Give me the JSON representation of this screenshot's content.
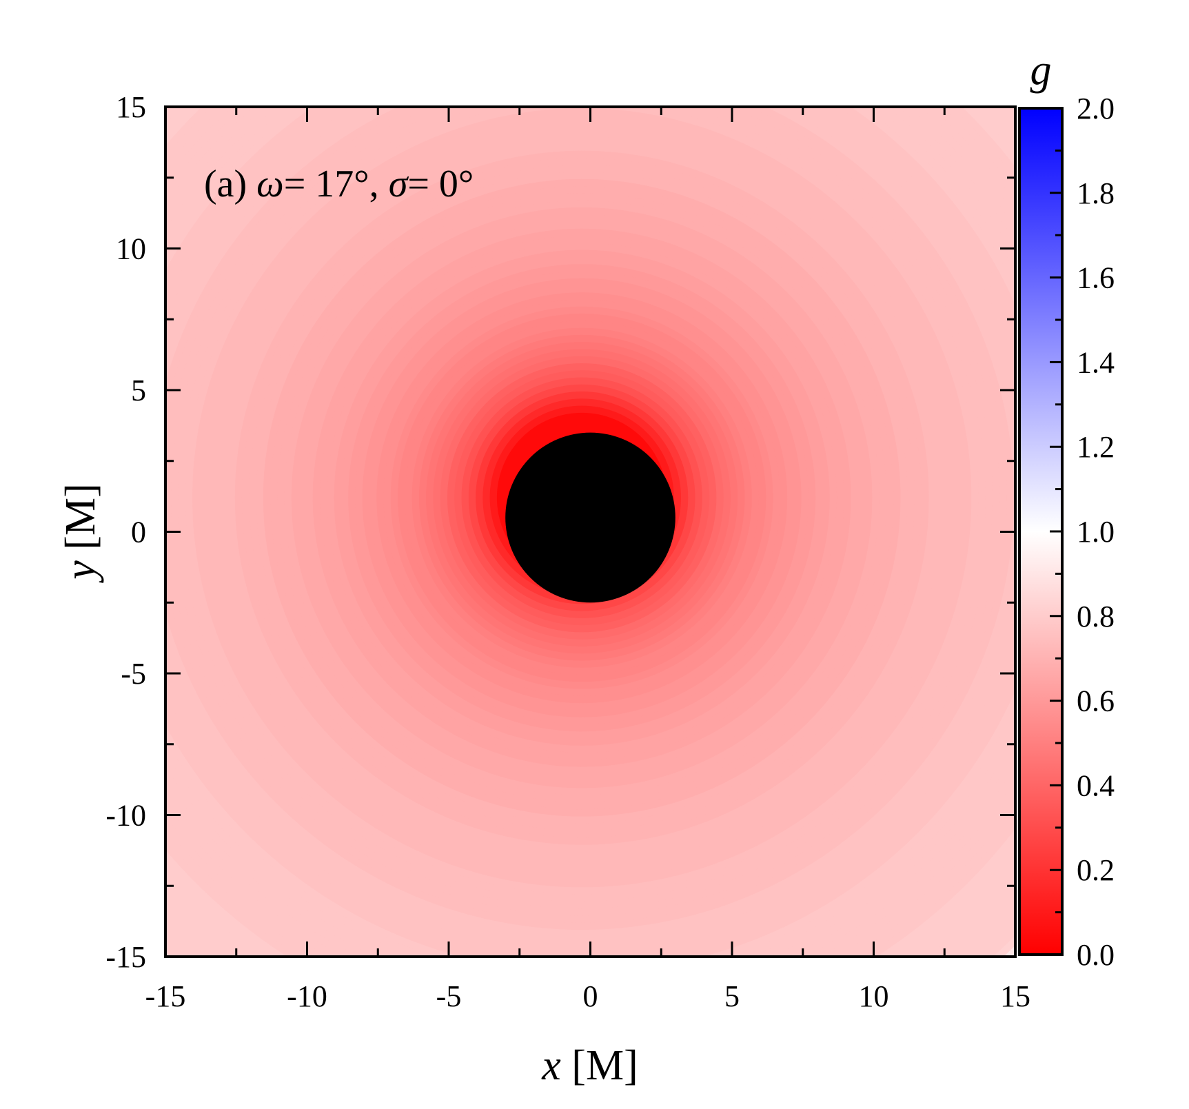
{
  "chart_data": {
    "type": "heatmap",
    "annotation": {
      "prefix": "(a) ",
      "sym1": "ω",
      "mid1": "= 17°, ",
      "sym2": "σ",
      "mid2": "= 0°"
    },
    "xlabel": {
      "var": "x",
      "unit": " [M]"
    },
    "ylabel": {
      "var": "y",
      "unit": " [M]"
    },
    "xlim": [
      -15,
      15
    ],
    "ylim": [
      -15,
      15
    ],
    "xticks": [
      -15,
      -10,
      -5,
      0,
      5,
      10,
      15
    ],
    "xtick_labels": [
      "-15",
      "-10",
      "-5",
      "0",
      "5",
      "10",
      "15"
    ],
    "yticks": [
      -15,
      -10,
      -5,
      0,
      5,
      10,
      15
    ],
    "ytick_labels": [
      "-15",
      "-10",
      "-5",
      "0",
      "5",
      "10",
      "15"
    ],
    "colorbar": {
      "label": "g",
      "range": [
        0.0,
        2.0
      ],
      "ticks": [
        0.0,
        0.2,
        0.4,
        0.6,
        0.8,
        1.0,
        1.2,
        1.4,
        1.6,
        1.8,
        2.0
      ],
      "tick_labels": [
        "0.0",
        "0.2",
        "0.4",
        "0.6",
        "0.8",
        "1.0",
        "1.2",
        "1.4",
        "1.6",
        "1.8",
        "2.0"
      ],
      "colors": {
        "low": "#ff0000",
        "mid": "#ffffff",
        "high": "#0000ff"
      }
    },
    "shadow": {
      "center": [
        0,
        0.5
      ],
      "radius": 3.0,
      "color": "#000000"
    },
    "field": {
      "description_center": [
        -0.3,
        1.2
      ],
      "g_profile": [
        {
          "r": 3.0,
          "g": 0.03
        },
        {
          "r": 4.0,
          "g": 0.28
        },
        {
          "r": 5.0,
          "g": 0.42
        },
        {
          "r": 6.0,
          "g": 0.5
        },
        {
          "r": 8.0,
          "g": 0.6
        },
        {
          "r": 10.0,
          "g": 0.66
        },
        {
          "r": 13.0,
          "g": 0.72
        },
        {
          "r": 17.0,
          "g": 0.77
        },
        {
          "r": 22.0,
          "g": 0.81
        }
      ],
      "contour_step": 0.02
    },
    "grid": false
  }
}
